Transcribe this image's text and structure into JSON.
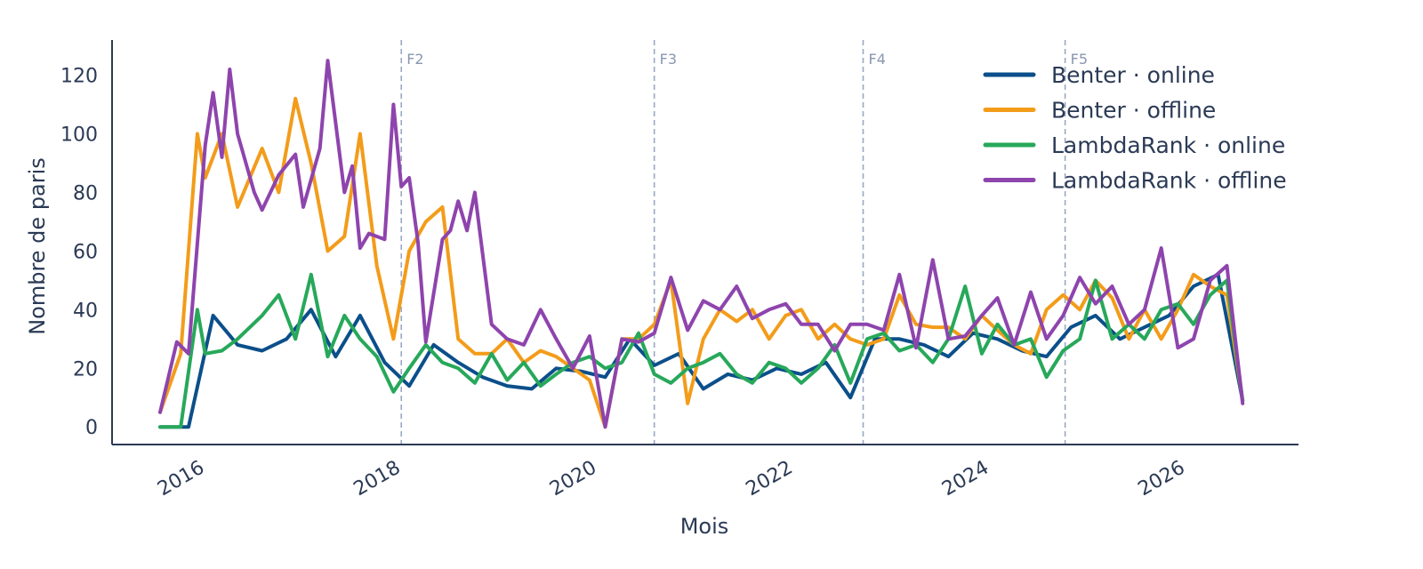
{
  "chart_data": {
    "type": "line",
    "title": "",
    "xlabel": "Mois",
    "ylabel": "Nombre de paris",
    "xlim": [
      2015.3,
      2027.4
    ],
    "ylim": [
      -6,
      132
    ],
    "x_ticks": [
      2016,
      2018,
      2020,
      2022,
      2024,
      2026
    ],
    "x_tick_labels": [
      "2016",
      "2018",
      "2020",
      "2022",
      "2024",
      "2026"
    ],
    "y_ticks": [
      0,
      20,
      40,
      60,
      80,
      100,
      120
    ],
    "y_tick_labels": [
      "0",
      "20",
      "40",
      "60",
      "80",
      "100",
      "120"
    ],
    "grid": false,
    "legend_position": "top-right",
    "vertical_markers": [
      {
        "label": "F2",
        "x": 2018.25
      },
      {
        "label": "F3",
        "x": 2020.83
      },
      {
        "label": "F4",
        "x": 2022.96
      },
      {
        "label": "F5",
        "x": 2025.02
      }
    ],
    "series": [
      {
        "name": "Benter · online",
        "color": "#0b4f8a",
        "x": [
          2015.79,
          2016.08,
          2016.33,
          2016.58,
          2016.83,
          2017.08,
          2017.33,
          2017.58,
          2017.83,
          2018.08,
          2018.33,
          2018.58,
          2018.83,
          2019.08,
          2019.33,
          2019.58,
          2019.83,
          2020.08,
          2020.33,
          2020.58,
          2020.83,
          2021.08,
          2021.33,
          2021.58,
          2021.83,
          2022.08,
          2022.33,
          2022.58,
          2022.83,
          2023.08,
          2023.33,
          2023.58,
          2023.83,
          2024.08,
          2024.33,
          2024.58,
          2024.83,
          2025.08,
          2025.33,
          2025.58,
          2025.83,
          2026.08,
          2026.33,
          2026.58,
          2026.83
        ],
        "y": [
          0,
          0,
          38,
          28,
          26,
          30,
          40,
          24,
          38,
          22,
          14,
          28,
          22,
          17,
          14,
          13,
          20,
          19,
          17,
          30,
          21,
          25,
          13,
          18,
          16,
          20,
          18,
          22,
          10,
          30,
          30,
          28,
          24,
          32,
          30,
          26,
          24,
          34,
          38,
          30,
          34,
          38,
          48,
          52,
          9
        ]
      },
      {
        "name": "Benter · offline",
        "color": "#f39c1a",
        "x": [
          2015.79,
          2016.0,
          2016.17,
          2016.25,
          2016.42,
          2016.58,
          2016.83,
          2017.0,
          2017.17,
          2017.33,
          2017.5,
          2017.67,
          2017.83,
          2018.0,
          2018.17,
          2018.33,
          2018.5,
          2018.67,
          2018.83,
          2019.0,
          2019.17,
          2019.33,
          2019.5,
          2019.67,
          2019.83,
          2020.0,
          2020.17,
          2020.33,
          2020.5,
          2020.67,
          2020.83,
          2021.0,
          2021.17,
          2021.33,
          2021.5,
          2021.67,
          2021.83,
          2022.0,
          2022.17,
          2022.33,
          2022.5,
          2022.67,
          2022.83,
          2023.0,
          2023.17,
          2023.33,
          2023.5,
          2023.67,
          2023.83,
          2024.0,
          2024.17,
          2024.33,
          2024.5,
          2024.67,
          2024.83,
          2025.0,
          2025.17,
          2025.33,
          2025.5,
          2025.67,
          2025.83,
          2026.0,
          2026.17,
          2026.33,
          2026.5,
          2026.67,
          2026.83
        ],
        "y": [
          5,
          25,
          100,
          85,
          100,
          75,
          95,
          80,
          112,
          90,
          60,
          65,
          100,
          55,
          30,
          60,
          70,
          75,
          30,
          25,
          25,
          30,
          22,
          26,
          24,
          20,
          16,
          0,
          30,
          30,
          35,
          50,
          8,
          30,
          40,
          36,
          40,
          30,
          38,
          40,
          30,
          35,
          30,
          28,
          30,
          45,
          35,
          34,
          34,
          30,
          38,
          33,
          28,
          25,
          40,
          45,
          40,
          50,
          44,
          30,
          40,
          30,
          40,
          52,
          48,
          45,
          9
        ]
      },
      {
        "name": "LambdaRank · online",
        "color": "#27a85a",
        "x": [
          2015.79,
          2016.0,
          2016.17,
          2016.25,
          2016.42,
          2016.58,
          2016.83,
          2017.0,
          2017.17,
          2017.33,
          2017.5,
          2017.67,
          2017.83,
          2018.0,
          2018.17,
          2018.33,
          2018.5,
          2018.67,
          2018.83,
          2019.0,
          2019.17,
          2019.33,
          2019.5,
          2019.67,
          2019.83,
          2020.0,
          2020.17,
          2020.33,
          2020.5,
          2020.67,
          2020.83,
          2021.0,
          2021.17,
          2021.33,
          2021.5,
          2021.67,
          2021.83,
          2022.0,
          2022.17,
          2022.33,
          2022.5,
          2022.67,
          2022.83,
          2023.0,
          2023.17,
          2023.33,
          2023.5,
          2023.67,
          2023.83,
          2024.0,
          2024.17,
          2024.33,
          2024.5,
          2024.67,
          2024.83,
          2025.0,
          2025.17,
          2025.33,
          2025.5,
          2025.67,
          2025.83,
          2026.0,
          2026.17,
          2026.33,
          2026.5,
          2026.67,
          2026.83
        ],
        "y": [
          0,
          0,
          40,
          25,
          26,
          30,
          38,
          45,
          30,
          52,
          24,
          38,
          30,
          24,
          12,
          20,
          28,
          22,
          20,
          15,
          25,
          16,
          22,
          14,
          18,
          22,
          24,
          20,
          22,
          32,
          18,
          15,
          20,
          22,
          25,
          18,
          15,
          22,
          20,
          15,
          20,
          28,
          15,
          30,
          32,
          26,
          28,
          22,
          30,
          48,
          25,
          35,
          28,
          30,
          17,
          26,
          30,
          50,
          30,
          35,
          30,
          40,
          42,
          35,
          45,
          50,
          9
        ]
      },
      {
        "name": "LambdaRank · offline",
        "color": "#8e44ad",
        "x": [
          2015.79,
          2015.96,
          2016.08,
          2016.25,
          2016.33,
          2016.42,
          2016.5,
          2016.58,
          2016.75,
          2016.83,
          2017.0,
          2017.17,
          2017.25,
          2017.42,
          2017.5,
          2017.67,
          2017.75,
          2017.83,
          2017.92,
          2018.08,
          2018.17,
          2018.25,
          2018.33,
          2018.42,
          2018.5,
          2018.67,
          2018.75,
          2018.83,
          2018.92,
          2019.0,
          2019.17,
          2019.33,
          2019.5,
          2019.67,
          2019.83,
          2020.0,
          2020.17,
          2020.33,
          2020.5,
          2020.67,
          2020.83,
          2021.0,
          2021.17,
          2021.33,
          2021.5,
          2021.67,
          2021.83,
          2022.0,
          2022.17,
          2022.33,
          2022.5,
          2022.67,
          2022.83,
          2023.0,
          2023.17,
          2023.33,
          2023.5,
          2023.67,
          2023.83,
          2024.0,
          2024.17,
          2024.33,
          2024.5,
          2024.67,
          2024.83,
          2025.0,
          2025.17,
          2025.33,
          2025.5,
          2025.67,
          2025.83,
          2026.0,
          2026.17,
          2026.33,
          2026.5,
          2026.67,
          2026.83
        ],
        "y": [
          5,
          29,
          25,
          96,
          114,
          92,
          122,
          100,
          80,
          74,
          86,
          93,
          75,
          95,
          125,
          80,
          89,
          61,
          66,
          64,
          110,
          82,
          85,
          63,
          29,
          64,
          67,
          77,
          67,
          80,
          35,
          30,
          28,
          40,
          30,
          20,
          31,
          0,
          30,
          29,
          32,
          51,
          33,
          43,
          40,
          48,
          37,
          40,
          42,
          35,
          35,
          26,
          35,
          35,
          33,
          52,
          27,
          57,
          30,
          31,
          38,
          44,
          28,
          46,
          30,
          38,
          51,
          42,
          48,
          35,
          40,
          61,
          27,
          30,
          50,
          55,
          8
        ]
      }
    ]
  }
}
